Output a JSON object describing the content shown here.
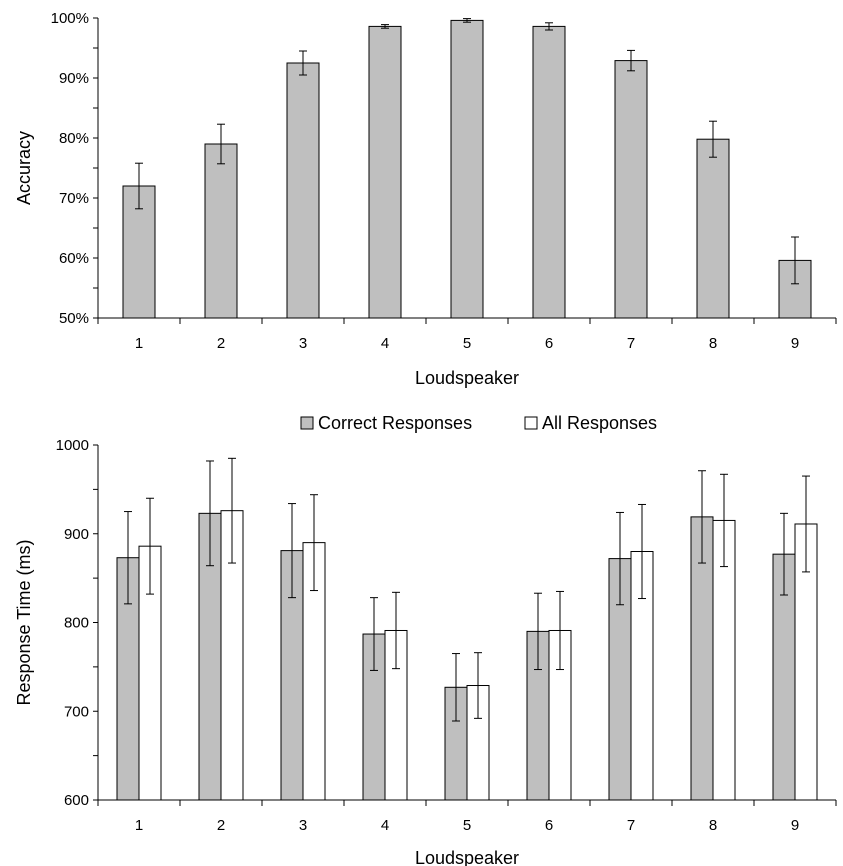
{
  "chart_data": [
    {
      "type": "bar",
      "xlabel": "Loudspeaker",
      "ylabel": "Accuracy",
      "categories": [
        "1",
        "2",
        "3",
        "4",
        "5",
        "6",
        "7",
        "8",
        "9"
      ],
      "ylim": [
        50,
        100
      ],
      "yticks": [
        50,
        60,
        70,
        80,
        90,
        100
      ],
      "ytick_labels": [
        "50%",
        "60%",
        "70%",
        "80%",
        "90%",
        "100%"
      ],
      "grid": false,
      "series": [
        {
          "values": [
            72.0,
            79.0,
            92.5,
            98.6,
            99.6,
            98.6,
            92.9,
            79.8,
            59.6
          ],
          "error": [
            3.8,
            3.3,
            2.0,
            0.3,
            0.3,
            0.6,
            1.7,
            3.0,
            3.9
          ],
          "color": "#bfbfbf"
        }
      ]
    },
    {
      "type": "bar",
      "xlabel": "Loudspeaker",
      "ylabel": "Response Time (ms)",
      "categories": [
        "1",
        "2",
        "3",
        "4",
        "5",
        "6",
        "7",
        "8",
        "9"
      ],
      "ylim": [
        600,
        1000
      ],
      "yticks": [
        600,
        700,
        800,
        900,
        1000
      ],
      "ytick_labels": [
        "600",
        "700",
        "800",
        "900",
        "1000"
      ],
      "grid": false,
      "legend_position": "top",
      "series": [
        {
          "name": "Correct Responses",
          "values": [
            873,
            923,
            881,
            787,
            727,
            790,
            872,
            919,
            877
          ],
          "error": [
            52,
            59,
            53,
            41,
            38,
            43,
            52,
            52,
            46
          ],
          "color": "#bfbfbf"
        },
        {
          "name": "All Responses",
          "values": [
            886,
            926,
            890,
            791,
            729,
            791,
            880,
            915,
            911
          ],
          "error": [
            54,
            59,
            54,
            43,
            37,
            44,
            53,
            52,
            54
          ],
          "color": "#ffffff"
        }
      ]
    }
  ]
}
